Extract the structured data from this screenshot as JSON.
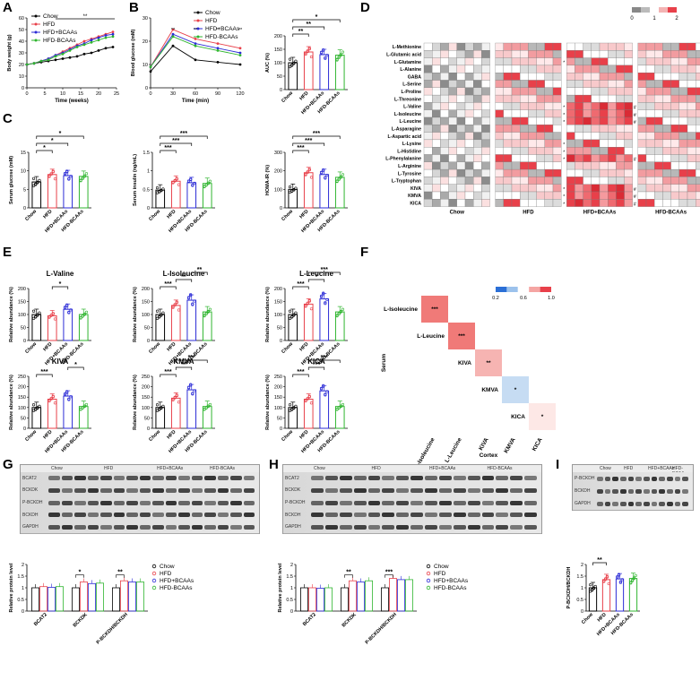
{
  "panel_labels": [
    "A",
    "B",
    "C",
    "D",
    "E",
    "F",
    "G",
    "H",
    "I"
  ],
  "colors": {
    "chow": "#000000",
    "hfd": "#e8404a",
    "hfd_bcaas": "#2b2bd6",
    "hfd_neg": "#2fb52f"
  },
  "groups": [
    "Chow",
    "HFD",
    "HFD+BCAAs",
    "HFD-BCAAs"
  ],
  "chart_data": [
    {
      "id": "A",
      "type": "line",
      "xlabel": "Time (weeks)",
      "ylabel": "Body weight (g)",
      "xlim": [
        0,
        25
      ],
      "ylim": [
        0,
        60
      ],
      "xticks": [
        0,
        5,
        10,
        15,
        20,
        25
      ],
      "yticks": [
        0,
        10,
        20,
        30,
        40,
        50,
        60
      ],
      "annotation": "**",
      "x": [
        0,
        2,
        4,
        6,
        8,
        10,
        12,
        14,
        16,
        18,
        20,
        22,
        24
      ],
      "series": [
        {
          "name": "Chow",
          "values": [
            20,
            21,
            22,
            23,
            24,
            25,
            26,
            27,
            29,
            30,
            32,
            34,
            35
          ]
        },
        {
          "name": "HFD",
          "values": [
            20,
            21,
            23,
            25,
            28,
            31,
            34,
            37,
            40,
            42,
            44,
            46,
            48
          ]
        },
        {
          "name": "HFD+BCAAs",
          "values": [
            20,
            21,
            23,
            25,
            28,
            30,
            33,
            36,
            38,
            41,
            43,
            45,
            46
          ]
        },
        {
          "name": "HFD-BCAAs",
          "values": [
            20,
            21,
            23,
            24,
            27,
            29,
            32,
            35,
            37,
            39,
            41,
            43,
            44
          ]
        }
      ]
    },
    {
      "id": "B1",
      "type": "line",
      "xlabel": "Time (min)",
      "ylabel": "Blood glucose (mM)",
      "xlim": [
        0,
        120
      ],
      "ylim": [
        0,
        30
      ],
      "xticks": [
        0,
        30,
        60,
        90,
        120
      ],
      "yticks": [
        0,
        10,
        20,
        30
      ],
      "annotations": [
        "**",
        "**",
        "**",
        "**"
      ],
      "x": [
        0,
        30,
        60,
        90,
        120
      ],
      "series": [
        {
          "name": "Chow",
          "values": [
            7,
            18,
            12,
            11,
            10
          ]
        },
        {
          "name": "HFD",
          "values": [
            9,
            25,
            21,
            19,
            17
          ]
        },
        {
          "name": "HFD+BCAAs",
          "values": [
            9,
            23,
            19,
            17,
            15
          ]
        },
        {
          "name": "HFD-BCAAs",
          "values": [
            9,
            22,
            18,
            16,
            14
          ]
        }
      ]
    },
    {
      "id": "B2",
      "type": "bar",
      "ylabel": "AUC (%)",
      "ylim": [
        0,
        200
      ],
      "yticks": [
        0,
        50,
        100,
        150,
        200
      ],
      "categories": [
        "Chow",
        "HFD",
        "HFD+BCAAs",
        "HFD-BCAAs"
      ],
      "values": [
        100,
        140,
        130,
        128
      ],
      "sig": [
        {
          "from": 0,
          "to": 1,
          "label": "**"
        },
        {
          "from": 0,
          "to": 2,
          "label": "**"
        },
        {
          "from": 0,
          "to": 3,
          "label": "*"
        }
      ]
    },
    {
      "id": "C1",
      "type": "bar",
      "ylabel": "Serum glucose (mM)",
      "ylim": [
        0,
        15
      ],
      "yticks": [
        0,
        5,
        10,
        15
      ],
      "categories": [
        "Chow",
        "HFD",
        "HFD+BCAAs",
        "HFD-BCAAs"
      ],
      "values": [
        7,
        9,
        8.7,
        8.5
      ],
      "sig": [
        {
          "from": 0,
          "to": 1,
          "label": "*"
        },
        {
          "from": 0,
          "to": 2,
          "label": "*"
        },
        {
          "from": 0,
          "to": 3,
          "label": "*"
        }
      ]
    },
    {
      "id": "C2",
      "type": "bar",
      "ylabel": "Serum insulin (ng/mL)",
      "ylim": [
        0,
        1.5
      ],
      "yticks": [
        0,
        0.5,
        1,
        1.5
      ],
      "categories": [
        "Chow",
        "HFD",
        "HFD+BCAAs",
        "HFD-BCAAs"
      ],
      "values": [
        0.48,
        0.72,
        0.68,
        0.66
      ],
      "sig": [
        {
          "from": 0,
          "to": 1,
          "label": "***"
        },
        {
          "from": 0,
          "to": 2,
          "label": "***"
        },
        {
          "from": 0,
          "to": 3,
          "label": "***"
        }
      ]
    },
    {
      "id": "C3",
      "type": "bar",
      "ylabel": "HOMA-IR (%)",
      "ylim": [
        0,
        300
      ],
      "yticks": [
        0,
        100,
        200,
        300
      ],
      "categories": [
        "Chow",
        "HFD",
        "HFD+BCAAs",
        "HFD-BCAAs"
      ],
      "values": [
        100,
        190,
        180,
        165
      ],
      "sig": [
        {
          "from": 0,
          "to": 1,
          "label": "***"
        },
        {
          "from": 0,
          "to": 2,
          "label": "***"
        },
        {
          "from": 0,
          "to": 3,
          "label": "***"
        }
      ]
    },
    {
      "id": "E1",
      "type": "bar",
      "title": "L-Valine",
      "ylabel": "Relative abundance (%)",
      "ylim": [
        0,
        200
      ],
      "yticks": [
        0,
        50,
        100,
        150,
        200
      ],
      "categories": [
        "Chow",
        "HFD",
        "HFD+BCAAs",
        "HFD-BCAAs"
      ],
      "values": [
        100,
        95,
        120,
        100
      ],
      "sig": [
        {
          "from": 1,
          "to": 2,
          "label": "*"
        }
      ]
    },
    {
      "id": "E2",
      "type": "bar",
      "title": "L-Isoleucine",
      "ylabel": "Relative abundance (%)",
      "ylim": [
        0,
        200
      ],
      "yticks": [
        0,
        50,
        100,
        150,
        200
      ],
      "categories": [
        "Chow",
        "HFD",
        "HFD+BCAAs",
        "HFD-BCAAs"
      ],
      "values": [
        100,
        135,
        155,
        110
      ],
      "sig": [
        {
          "from": 0,
          "to": 1,
          "label": "***"
        },
        {
          "from": 1,
          "to": 2,
          "label": "**"
        },
        {
          "from": 2,
          "to": 3,
          "label": "**"
        }
      ]
    },
    {
      "id": "E3",
      "type": "bar",
      "title": "L-Leucine",
      "ylabel": "Relative abundance (%)",
      "ylim": [
        0,
        200
      ],
      "yticks": [
        0,
        50,
        100,
        150,
        200
      ],
      "categories": [
        "Chow",
        "HFD",
        "HFD+BCAAs",
        "HFD-BCAAs"
      ],
      "values": [
        100,
        140,
        160,
        110
      ],
      "sig": [
        {
          "from": 0,
          "to": 1,
          "label": "***"
        },
        {
          "from": 1,
          "to": 2,
          "label": "*"
        },
        {
          "from": 1,
          "to": 3,
          "label": "***"
        }
      ]
    },
    {
      "id": "E4",
      "type": "bar",
      "title": "KIVA",
      "ylabel": "Relative abundance (%)",
      "ylim": [
        0,
        250
      ],
      "yticks": [
        0,
        50,
        100,
        150,
        200,
        250
      ],
      "categories": [
        "Chow",
        "HFD",
        "HFD+BCAAs",
        "HFD-BCAAs"
      ],
      "values": [
        100,
        140,
        155,
        105
      ],
      "sig": [
        {
          "from": 0,
          "to": 1,
          "label": "***"
        },
        {
          "from": 2,
          "to": 3,
          "label": "*"
        }
      ]
    },
    {
      "id": "E5",
      "type": "bar",
      "title": "KMVA",
      "ylabel": "Relative abundance (%)",
      "ylim": [
        0,
        250
      ],
      "yticks": [
        0,
        50,
        100,
        150,
        200,
        250
      ],
      "categories": [
        "Chow",
        "HFD",
        "HFD+BCAAs",
        "HFD-BCAAs"
      ],
      "values": [
        100,
        145,
        185,
        105
      ],
      "sig": [
        {
          "from": 0,
          "to": 1,
          "label": "***"
        },
        {
          "from": 1,
          "to": 2,
          "label": "**"
        },
        {
          "from": 1,
          "to": 3,
          "label": "***"
        }
      ]
    },
    {
      "id": "E6",
      "type": "bar",
      "title": "KICA",
      "ylabel": "Relative abundance (%)",
      "ylim": [
        0,
        250
      ],
      "yticks": [
        0,
        50,
        100,
        150,
        200,
        250
      ],
      "categories": [
        "Chow",
        "HFD",
        "HFD+BCAAs",
        "HFD-BCAAs"
      ],
      "values": [
        100,
        140,
        180,
        105
      ],
      "sig": [
        {
          "from": 0,
          "to": 1,
          "label": "***"
        },
        {
          "from": 1,
          "to": 2,
          "label": "***"
        },
        {
          "from": 1,
          "to": 3,
          "label": "***"
        }
      ]
    },
    {
      "id": "F",
      "type": "heatmap",
      "xlabel": "Cortex",
      "ylabel": "Serum",
      "rows": [
        "L-Isoleucine",
        "L-Leucine",
        "KIVA",
        "KMVA",
        "KICA"
      ],
      "cols": [
        "L-Isoleucine",
        "L-Leucine",
        "KIVA",
        "KMVA",
        "KICA"
      ],
      "diagonal": [
        {
          "value": 0.95,
          "label": "***"
        },
        {
          "value": 0.9,
          "label": "***"
        },
        {
          "value": 0.75,
          "label": "**"
        },
        {
          "value": 0.25,
          "label": "*"
        },
        {
          "value": 0.45,
          "label": "*"
        }
      ],
      "colorbar": {
        "ticks": [
          "0.2",
          "0.6",
          "1.0"
        ]
      }
    },
    {
      "id": "G",
      "type": "bar",
      "ylabel": "Relative protein level",
      "ylim": [
        0,
        2
      ],
      "yticks": [
        0,
        0.5,
        1.0,
        1.5,
        2.0
      ],
      "categories": [
        "BCAT2",
        "BCKDK",
        "P-BCKDH/BCKDH"
      ],
      "series": [
        {
          "name": "Chow",
          "values": [
            1,
            1,
            1
          ]
        },
        {
          "name": "HFD",
          "values": [
            1.05,
            1.25,
            1.3
          ]
        },
        {
          "name": "HFD+BCAAs",
          "values": [
            1.02,
            1.18,
            1.25
          ]
        },
        {
          "name": "HFD-BCAAs",
          "values": [
            1.05,
            1.2,
            1.25
          ]
        }
      ],
      "sig": [
        "",
        "*",
        "**"
      ]
    },
    {
      "id": "H",
      "type": "bar",
      "ylabel": "Relative protein level",
      "ylim": [
        0,
        2
      ],
      "yticks": [
        0,
        0.5,
        1.0,
        1.5,
        2.0
      ],
      "categories": [
        "BCAT2",
        "BCKDK",
        "P-BCKDH/BCKDH"
      ],
      "series": [
        {
          "name": "Chow",
          "values": [
            1,
            1,
            1
          ]
        },
        {
          "name": "HFD",
          "values": [
            1.0,
            1.3,
            1.4
          ]
        },
        {
          "name": "HFD+BCAAs",
          "values": [
            0.98,
            1.25,
            1.35
          ]
        },
        {
          "name": "HFD-BCAAs",
          "values": [
            1.0,
            1.3,
            1.35
          ]
        }
      ],
      "sig": [
        "",
        "**",
        "***"
      ]
    },
    {
      "id": "I",
      "type": "bar",
      "ylabel": "P-BCKDH/BCKDH",
      "ylim": [
        0,
        2
      ],
      "yticks": [
        0,
        0.5,
        1,
        1.5,
        2
      ],
      "categories": [
        "Chow",
        "HFD",
        "HFD+BCAAs",
        "HFD-BCAAs"
      ],
      "values": [
        1.0,
        1.35,
        1.38,
        1.4
      ],
      "sig": [
        {
          "from": 0,
          "to": 1,
          "label": "**"
        }
      ]
    }
  ],
  "heatmap_D": {
    "rows": [
      "L-Methionine",
      "L-Glutamic acid",
      "L-Glutamine",
      "L-Alanine",
      "GABA",
      "L-Serine",
      "L-Proline",
      "L-Threonine",
      "L-Valine",
      "L-Isoleucine",
      "L-Leucine",
      "L-Asparagine",
      "L-Aspartic acid",
      "L-Lysine",
      "L-Histidine",
      "L-Phenylalanine",
      "L-Arginine",
      "L-Tyrosine",
      "L-Tryptophan",
      "KIVA",
      "KMVA",
      "KICA"
    ],
    "groups": [
      "Chow",
      "HFD",
      "HFD+BCAAs",
      "HFD-BCAAs"
    ],
    "colorbar_ticks": [
      "0",
      "1",
      "2"
    ],
    "hash_rows": [
      8,
      9,
      10,
      15,
      19,
      20,
      21
    ],
    "star_rows_hfd": [
      2,
      8,
      9,
      10,
      13,
      14,
      15,
      19,
      20,
      21
    ],
    "star_mark": "*",
    "hash_mark": "#"
  },
  "blots": {
    "G": {
      "header": [
        "Chow",
        "HFD",
        "HFD+BCAAs",
        "HFD-BCAAs"
      ],
      "rows": [
        "BCAT2",
        "BCKDK",
        "P-BCKDH",
        "BCKDH",
        "GAPDH"
      ]
    },
    "H": {
      "header": [
        "Chow",
        "HFD",
        "HFD+BCAAs",
        "HFD-BCAAs"
      ],
      "rows": [
        "BCAT2",
        "BCKDK",
        "P-BCKDH",
        "BCKDH",
        "GAPDH"
      ]
    },
    "I": {
      "header": [
        "Chow",
        "HFD",
        "HFD+BCAAs",
        "HFD-BCAAs"
      ],
      "rows": [
        "P-BCKDH",
        "BCKDH",
        "GAPDH"
      ]
    }
  }
}
